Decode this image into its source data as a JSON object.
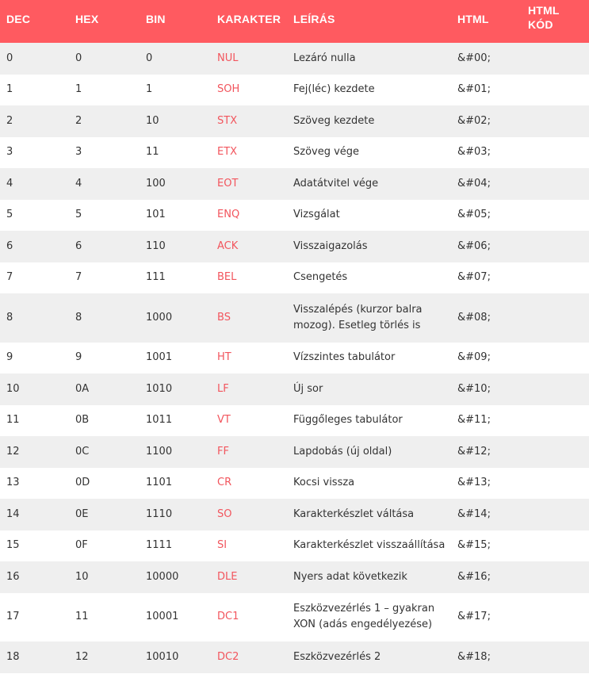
{
  "headers": [
    "DEC",
    "HEX",
    "BIN",
    "KARAKTER",
    "LEÍRÁS",
    "HTML",
    "HTML KÓD"
  ],
  "rows": [
    {
      "dec": "0",
      "hex": "0",
      "bin": "0",
      "char": "NUL",
      "desc": "Lezáró nulla",
      "html": "&#00;",
      "code": ""
    },
    {
      "dec": "1",
      "hex": "1",
      "bin": "1",
      "char": "SOH",
      "desc": "Fej(léc) kezdete",
      "html": "&#01;",
      "code": ""
    },
    {
      "dec": "2",
      "hex": "2",
      "bin": "10",
      "char": "STX",
      "desc": "Szöveg kezdete",
      "html": "&#02;",
      "code": ""
    },
    {
      "dec": "3",
      "hex": "3",
      "bin": "11",
      "char": "ETX",
      "desc": "Szöveg vége",
      "html": "&#03;",
      "code": ""
    },
    {
      "dec": "4",
      "hex": "4",
      "bin": "100",
      "char": "EOT",
      "desc": "Adatátvitel vége",
      "html": "&#04;",
      "code": ""
    },
    {
      "dec": "5",
      "hex": "5",
      "bin": "101",
      "char": "ENQ",
      "desc": "Vizsgálat",
      "html": "&#05;",
      "code": ""
    },
    {
      "dec": "6",
      "hex": "6",
      "bin": "110",
      "char": "ACK",
      "desc": "Visszaigazolás",
      "html": "&#06;",
      "code": ""
    },
    {
      "dec": "7",
      "hex": "7",
      "bin": "111",
      "char": "BEL",
      "desc": "Csengetés",
      "html": "&#07;",
      "code": ""
    },
    {
      "dec": "8",
      "hex": "8",
      "bin": "1000",
      "char": "BS",
      "desc": "Visszalépés (kurzor balra mozog). Esetleg törlés is",
      "html": "&#08;",
      "code": ""
    },
    {
      "dec": "9",
      "hex": "9",
      "bin": "1001",
      "char": "HT",
      "desc": "Vízszintes tabulátor",
      "html": "&#09;",
      "code": ""
    },
    {
      "dec": "10",
      "hex": "0A",
      "bin": "1010",
      "char": "LF",
      "desc": "Új sor",
      "html": "&#10;",
      "code": ""
    },
    {
      "dec": "11",
      "hex": "0B",
      "bin": "1011",
      "char": "VT",
      "desc": "Függőleges tabulátor",
      "html": "&#11;",
      "code": ""
    },
    {
      "dec": "12",
      "hex": "0C",
      "bin": "1100",
      "char": "FF",
      "desc": "Lapdobás (új oldal)",
      "html": "&#12;",
      "code": ""
    },
    {
      "dec": "13",
      "hex": "0D",
      "bin": "1101",
      "char": "CR",
      "desc": "Kocsi vissza",
      "html": "&#13;",
      "code": ""
    },
    {
      "dec": "14",
      "hex": "0E",
      "bin": "1110",
      "char": "SO",
      "desc": "Karakterkészlet váltása",
      "html": "&#14;",
      "code": ""
    },
    {
      "dec": "15",
      "hex": "0F",
      "bin": "1111",
      "char": "SI",
      "desc": "Karakterkészlet visszaállítása",
      "html": "&#15;",
      "code": ""
    },
    {
      "dec": "16",
      "hex": "10",
      "bin": "10000",
      "char": "DLE",
      "desc": "Nyers adat következik",
      "html": "&#16;",
      "code": ""
    },
    {
      "dec": "17",
      "hex": "11",
      "bin": "10001",
      "char": "DC1",
      "desc": "Eszközvezérlés 1 – gyakran XON (adás engedélyezése)",
      "html": "&#17;",
      "code": ""
    },
    {
      "dec": "18",
      "hex": "12",
      "bin": "10010",
      "char": "DC2",
      "desc": "Eszközvezérlés 2",
      "html": "&#18;",
      "code": ""
    }
  ]
}
